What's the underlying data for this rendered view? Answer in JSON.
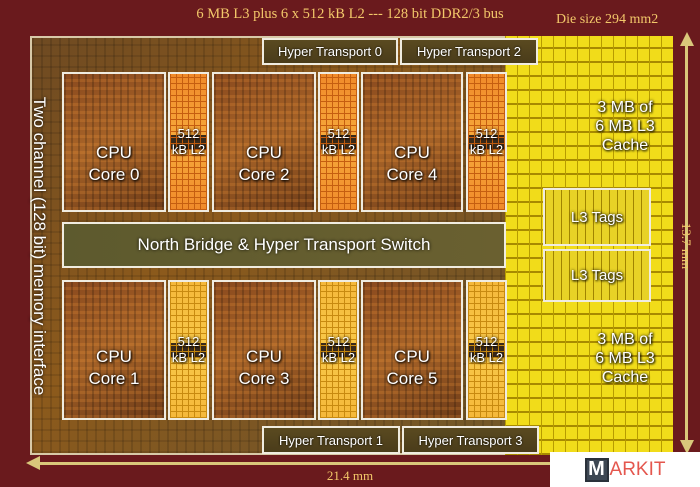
{
  "title": "6 MB L3  plus  6 x 512 kB L2  ---  128 bit DDR2/3 bus",
  "die_size": "Die size 294 mm2",
  "height_dim": "13.7 mm",
  "width_dim": "21.4 mm",
  "memory_interface": "Two channel (128 bit) memory interface",
  "hyper_transport": [
    "Hyper Transport 0",
    "Hyper Transport 2",
    "Hyper Transport 1",
    "Hyper Transport 3"
  ],
  "cores": [
    {
      "line1": "CPU",
      "line2": "Core 0"
    },
    {
      "line1": "CPU",
      "line2": "Core 2"
    },
    {
      "line1": "CPU",
      "line2": "Core 4"
    },
    {
      "line1": "CPU",
      "line2": "Core 1"
    },
    {
      "line1": "CPU",
      "line2": "Core 3"
    },
    {
      "line1": "CPU",
      "line2": "Core 5"
    }
  ],
  "l2": {
    "line1": "512",
    "line2": "kB L2"
  },
  "north_bridge": "North Bridge & Hyper Transport Switch",
  "l3_tags": "L3 Tags",
  "l3_cache": {
    "line1": "3 MB of",
    "line2": "6 MB L3",
    "line3": "Cache"
  },
  "logo": {
    "m": "M",
    "rest": "ARKIT"
  }
}
